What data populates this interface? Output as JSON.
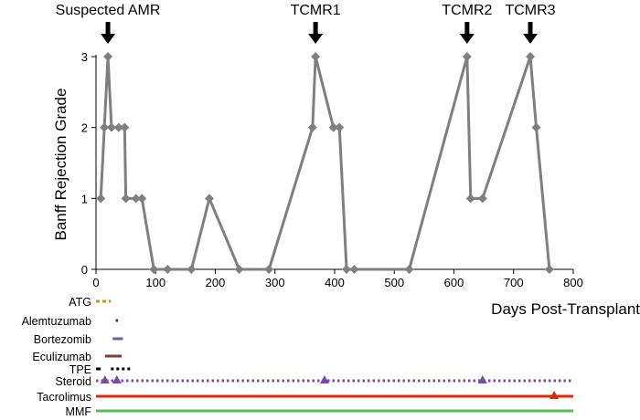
{
  "chart_data": {
    "type": "line",
    "xlabel": "Days Post-Transplant",
    "ylabel": "Banff Rejection Grade",
    "xlim": [
      0,
      800
    ],
    "ylim": [
      0,
      3
    ],
    "x_ticks": [
      0,
      100,
      200,
      300,
      400,
      500,
      600,
      700,
      800
    ],
    "y_ticks": [
      0,
      1,
      2,
      3
    ],
    "grid": false,
    "line_color": "#7f7f7f",
    "series": [
      {
        "x": [
          8,
          14,
          20,
          26,
          38,
          48,
          50,
          67,
          77,
          97,
          120,
          160,
          190,
          240,
          290,
          363,
          368,
          398,
          408,
          420,
          433,
          525,
          622,
          628,
          648,
          728,
          738,
          760
        ],
        "values": [
          1,
          2,
          3,
          2,
          2,
          2,
          1,
          1,
          1,
          0,
          0,
          0,
          1,
          0,
          0,
          2,
          3,
          2,
          2,
          0,
          0,
          0,
          3,
          1,
          1,
          3,
          2,
          0
        ]
      }
    ],
    "annotations": [
      {
        "label": "Suspected AMR",
        "x": 20
      },
      {
        "label": "TCMR1",
        "x": 368
      },
      {
        "label": "TCMR2",
        "x": 622
      },
      {
        "label": "TCMR3",
        "x": 728
      }
    ],
    "treatments": [
      {
        "label": "ATG",
        "color": "#e08a1e",
        "style": "dashed",
        "segments": [
          [
            0,
            25
          ]
        ],
        "markers": []
      },
      {
        "label": "Alemtuzumab",
        "color": "#2a2ad4",
        "style": "solid",
        "segments": [
          [
            33,
            37
          ]
        ],
        "markers": []
      },
      {
        "label": "Bortezomib",
        "color": "#5a64a8",
        "style": "solid",
        "segments": [
          [
            28,
            45
          ]
        ],
        "markers": []
      },
      {
        "label": "Eculizumab",
        "color": "#8b3a2a",
        "style": "solid",
        "segments": [
          [
            15,
            43
          ]
        ],
        "markers": []
      },
      {
        "label": "TPE",
        "color": "#000000",
        "style": "mixed",
        "segments": [
          [
            0,
            8
          ],
          [
            25,
            60
          ]
        ],
        "markers": []
      },
      {
        "label": "Steroid",
        "color": "#7b4aa8",
        "style": "dotted",
        "segments": [
          [
            0,
            800
          ]
        ],
        "markers": [
          15,
          35,
          383,
          648
        ]
      },
      {
        "label": "Tacrolimus",
        "color": "#d42a10",
        "style": "solid",
        "segments": [
          [
            0,
            800
          ]
        ],
        "markers": [
          768
        ]
      },
      {
        "label": "MMF",
        "color": "#5ab85a",
        "style": "solid",
        "segments": [
          [
            0,
            800
          ]
        ],
        "markers": []
      }
    ]
  }
}
